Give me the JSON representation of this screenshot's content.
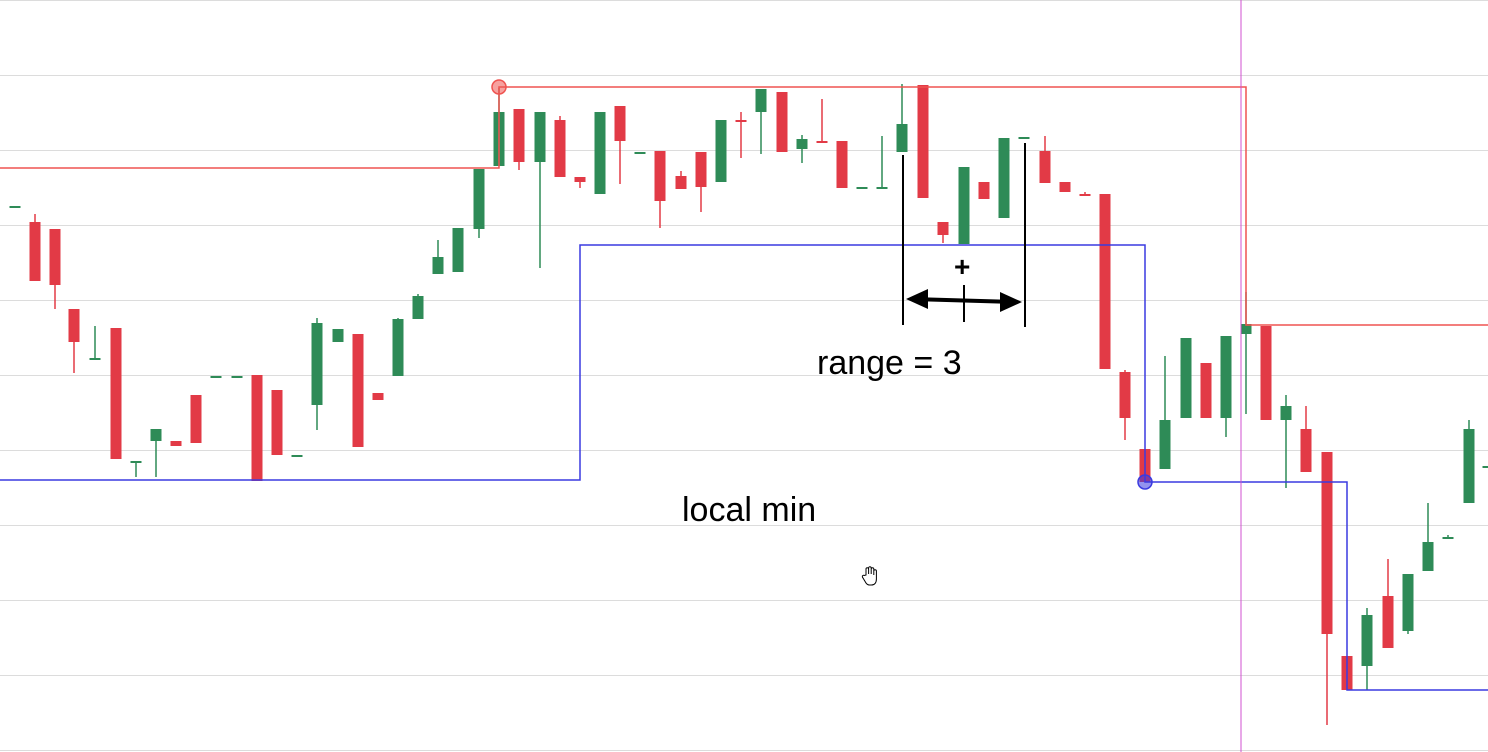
{
  "chart_data": {
    "type": "candlestick",
    "ylim": [
      0,
      752
    ],
    "grid": true,
    "colors": {
      "up": "#2e8b57",
      "down": "#e23a46",
      "resistance": "#ef5350",
      "support": "#3a3ae0",
      "cursor": "#d050d0"
    },
    "candles": [
      {
        "x": 15,
        "o": 546,
        "c": 546,
        "h": 546,
        "l": 546,
        "dir": "up"
      },
      {
        "x": 35,
        "o": 530,
        "c": 471,
        "h": 538,
        "l": 471,
        "dir": "down"
      },
      {
        "x": 55,
        "o": 523,
        "c": 467,
        "h": 523,
        "l": 443,
        "dir": "down"
      },
      {
        "x": 74,
        "o": 443,
        "c": 410,
        "h": 443,
        "l": 379,
        "dir": "down"
      },
      {
        "x": 95,
        "o": 394,
        "c": 394,
        "h": 426,
        "l": 394,
        "dir": "up"
      },
      {
        "x": 116,
        "o": 424,
        "c": 293,
        "h": 424,
        "l": 293,
        "dir": "down"
      },
      {
        "x": 136,
        "o": 291,
        "c": 291,
        "h": 291,
        "l": 275,
        "dir": "up"
      },
      {
        "x": 156,
        "o": 311,
        "c": 323,
        "h": 323,
        "l": 275,
        "dir": "up"
      },
      {
        "x": 176,
        "o": 311,
        "c": 306,
        "h": 311,
        "l": 306,
        "dir": "down"
      },
      {
        "x": 196,
        "o": 357,
        "c": 309,
        "h": 357,
        "l": 309,
        "dir": "down"
      },
      {
        "x": 216,
        "o": 376,
        "c": 376,
        "h": 376,
        "l": 376,
        "dir": "up"
      },
      {
        "x": 237,
        "o": 376,
        "c": 376,
        "h": 376,
        "l": 376,
        "dir": "up"
      },
      {
        "x": 257,
        "o": 377,
        "c": 271,
        "h": 377,
        "l": 271,
        "dir": "down"
      },
      {
        "x": 277,
        "o": 362,
        "c": 297,
        "h": 362,
        "l": 297,
        "dir": "down"
      },
      {
        "x": 297,
        "o": 297,
        "c": 297,
        "h": 297,
        "l": 297,
        "dir": "up"
      },
      {
        "x": 317,
        "o": 347,
        "c": 429,
        "h": 434,
        "l": 322,
        "dir": "up"
      },
      {
        "x": 338,
        "o": 410,
        "c": 423,
        "h": 423,
        "l": 410,
        "dir": "up"
      },
      {
        "x": 358,
        "o": 418,
        "c": 305,
        "h": 418,
        "l": 305,
        "dir": "down"
      },
      {
        "x": 378,
        "o": 359,
        "c": 352,
        "h": 359,
        "l": 352,
        "dir": "down"
      },
      {
        "x": 398,
        "o": 376,
        "c": 433,
        "h": 434,
        "l": 376,
        "dir": "up"
      },
      {
        "x": 418,
        "o": 433,
        "c": 456,
        "h": 458,
        "l": 433,
        "dir": "up"
      },
      {
        "x": 438,
        "o": 478,
        "c": 495,
        "h": 512,
        "l": 478,
        "dir": "up"
      },
      {
        "x": 458,
        "o": 480,
        "c": 524,
        "h": 524,
        "l": 480,
        "dir": "up"
      },
      {
        "x": 479,
        "o": 523,
        "c": 583,
        "h": 583,
        "l": 514,
        "dir": "up"
      },
      {
        "x": 499,
        "o": 586,
        "c": 640,
        "h": 664,
        "l": 586,
        "dir": "up"
      },
      {
        "x": 519,
        "o": 643,
        "c": 590,
        "h": 643,
        "l": 582,
        "dir": "down"
      },
      {
        "x": 540,
        "o": 590,
        "c": 640,
        "h": 640,
        "l": 484,
        "dir": "up"
      },
      {
        "x": 560,
        "o": 632,
        "c": 575,
        "h": 636,
        "l": 575,
        "dir": "down"
      },
      {
        "x": 580,
        "o": 575,
        "c": 570,
        "h": 575,
        "l": 564,
        "dir": "down"
      },
      {
        "x": 600,
        "o": 558,
        "c": 640,
        "h": 640,
        "l": 558,
        "dir": "up"
      },
      {
        "x": 620,
        "o": 646,
        "c": 611,
        "h": 646,
        "l": 568,
        "dir": "down"
      },
      {
        "x": 640,
        "o": 600,
        "c": 600,
        "h": 600,
        "l": 600,
        "dir": "up"
      },
      {
        "x": 660,
        "o": 601,
        "c": 551,
        "h": 601,
        "l": 524,
        "dir": "down"
      },
      {
        "x": 681,
        "o": 576,
        "c": 563,
        "h": 581,
        "l": 563,
        "dir": "down"
      },
      {
        "x": 701,
        "o": 600,
        "c": 565,
        "h": 600,
        "l": 540,
        "dir": "down"
      },
      {
        "x": 721,
        "o": 570,
        "c": 632,
        "h": 632,
        "l": 570,
        "dir": "up"
      },
      {
        "x": 741,
        "o": 632,
        "c": 632,
        "h": 640,
        "l": 594,
        "dir": "down"
      },
      {
        "x": 761,
        "o": 640,
        "c": 663,
        "h": 663,
        "l": 598,
        "dir": "up"
      },
      {
        "x": 782,
        "o": 660,
        "c": 600,
        "h": 660,
        "l": 600,
        "dir": "down"
      },
      {
        "x": 802,
        "o": 603,
        "c": 613,
        "h": 617,
        "l": 589,
        "dir": "up"
      },
      {
        "x": 822,
        "o": 611,
        "c": 611,
        "h": 653,
        "l": 611,
        "dir": "down"
      },
      {
        "x": 842,
        "o": 611,
        "c": 564,
        "h": 611,
        "l": 564,
        "dir": "down"
      },
      {
        "x": 862,
        "o": 565,
        "c": 565,
        "h": 565,
        "l": 565,
        "dir": "up"
      },
      {
        "x": 882,
        "o": 565,
        "c": 565,
        "h": 616,
        "l": 565,
        "dir": "up"
      },
      {
        "x": 902,
        "o": 600,
        "c": 628,
        "h": 668,
        "l": 600,
        "dir": "up"
      },
      {
        "x": 923,
        "o": 667,
        "c": 554,
        "h": 667,
        "l": 554,
        "dir": "down"
      },
      {
        "x": 943,
        "o": 530,
        "c": 517,
        "h": 530,
        "l": 509,
        "dir": "down"
      },
      {
        "x": 964,
        "o": 508,
        "c": 585,
        "h": 585,
        "l": 508,
        "dir": "up"
      },
      {
        "x": 984,
        "o": 570,
        "c": 553,
        "h": 570,
        "l": 553,
        "dir": "down"
      },
      {
        "x": 1004,
        "o": 534,
        "c": 614,
        "h": 614,
        "l": 534,
        "dir": "up"
      },
      {
        "x": 1024,
        "o": 615,
        "c": 615,
        "h": 615,
        "l": 615,
        "dir": "up"
      },
      {
        "x": 1045,
        "o": 601,
        "c": 569,
        "h": 616,
        "l": 569,
        "dir": "down"
      },
      {
        "x": 1065,
        "o": 570,
        "c": 560,
        "h": 570,
        "l": 560,
        "dir": "down"
      },
      {
        "x": 1085,
        "o": 558,
        "c": 558,
        "h": 560,
        "l": 558,
        "dir": "down"
      },
      {
        "x": 1105,
        "o": 558,
        "c": 383,
        "h": 558,
        "l": 383,
        "dir": "down"
      },
      {
        "x": 1125,
        "o": 380,
        "c": 334,
        "h": 382,
        "l": 312,
        "dir": "down"
      },
      {
        "x": 1145,
        "o": 303,
        "c": 270,
        "h": 303,
        "l": 270,
        "dir": "down"
      },
      {
        "x": 1165,
        "o": 283,
        "c": 332,
        "h": 396,
        "l": 283,
        "dir": "up"
      },
      {
        "x": 1186,
        "o": 334,
        "c": 414,
        "h": 414,
        "l": 334,
        "dir": "up"
      },
      {
        "x": 1206,
        "o": 389,
        "c": 334,
        "h": 389,
        "l": 334,
        "dir": "down"
      },
      {
        "x": 1226,
        "o": 334,
        "c": 416,
        "h": 416,
        "l": 315,
        "dir": "up"
      },
      {
        "x": 1246,
        "o": 418,
        "c": 428,
        "h": 460,
        "l": 338,
        "dir": "up"
      },
      {
        "x": 1266,
        "o": 426,
        "c": 332,
        "h": 426,
        "l": 332,
        "dir": "down"
      },
      {
        "x": 1286,
        "o": 332,
        "c": 346,
        "h": 357,
        "l": 264,
        "dir": "up"
      },
      {
        "x": 1306,
        "o": 323,
        "c": 280,
        "h": 346,
        "l": 280,
        "dir": "down"
      },
      {
        "x": 1327,
        "o": 300,
        "c": 118,
        "h": 300,
        "l": 27,
        "dir": "down"
      },
      {
        "x": 1347,
        "o": 96,
        "c": 62,
        "h": 96,
        "l": 62,
        "dir": "down"
      },
      {
        "x": 1367,
        "o": 86,
        "c": 137,
        "h": 144,
        "l": 62,
        "dir": "up"
      },
      {
        "x": 1388,
        "o": 156,
        "c": 104,
        "h": 193,
        "l": 104,
        "dir": "down"
      },
      {
        "x": 1408,
        "o": 121,
        "c": 178,
        "h": 178,
        "l": 118,
        "dir": "up"
      },
      {
        "x": 1428,
        "o": 181,
        "c": 210,
        "h": 249,
        "l": 181,
        "dir": "up"
      },
      {
        "x": 1448,
        "o": 215,
        "c": 215,
        "h": 217,
        "l": 215,
        "dir": "up"
      },
      {
        "x": 1469,
        "o": 249,
        "c": 323,
        "h": 332,
        "l": 249,
        "dir": "up"
      },
      {
        "x": 1488,
        "o": 286,
        "c": 286,
        "h": 286,
        "l": 286,
        "dir": "up"
      }
    ],
    "resistance_line": [
      [
        0,
        584
      ],
      [
        499,
        584
      ],
      [
        499,
        665
      ],
      [
        1246,
        665
      ],
      [
        1246,
        427
      ],
      [
        1488,
        427
      ]
    ],
    "support_line": [
      [
        0,
        272
      ],
      [
        580,
        272
      ],
      [
        580,
        507
      ],
      [
        1145,
        507
      ],
      [
        1145,
        270
      ],
      [
        1347,
        270
      ],
      [
        1347,
        62
      ],
      [
        1488,
        62
      ]
    ],
    "markers": [
      {
        "x": 499,
        "y": 665,
        "color": "#ef5350"
      },
      {
        "x": 1145,
        "y": 270,
        "color": "#3a3ae0"
      }
    ],
    "cursor_line_x": 1241,
    "annotations": {
      "range_label": "range = 3",
      "local_min_label": "local min",
      "plus_label": "+"
    }
  }
}
